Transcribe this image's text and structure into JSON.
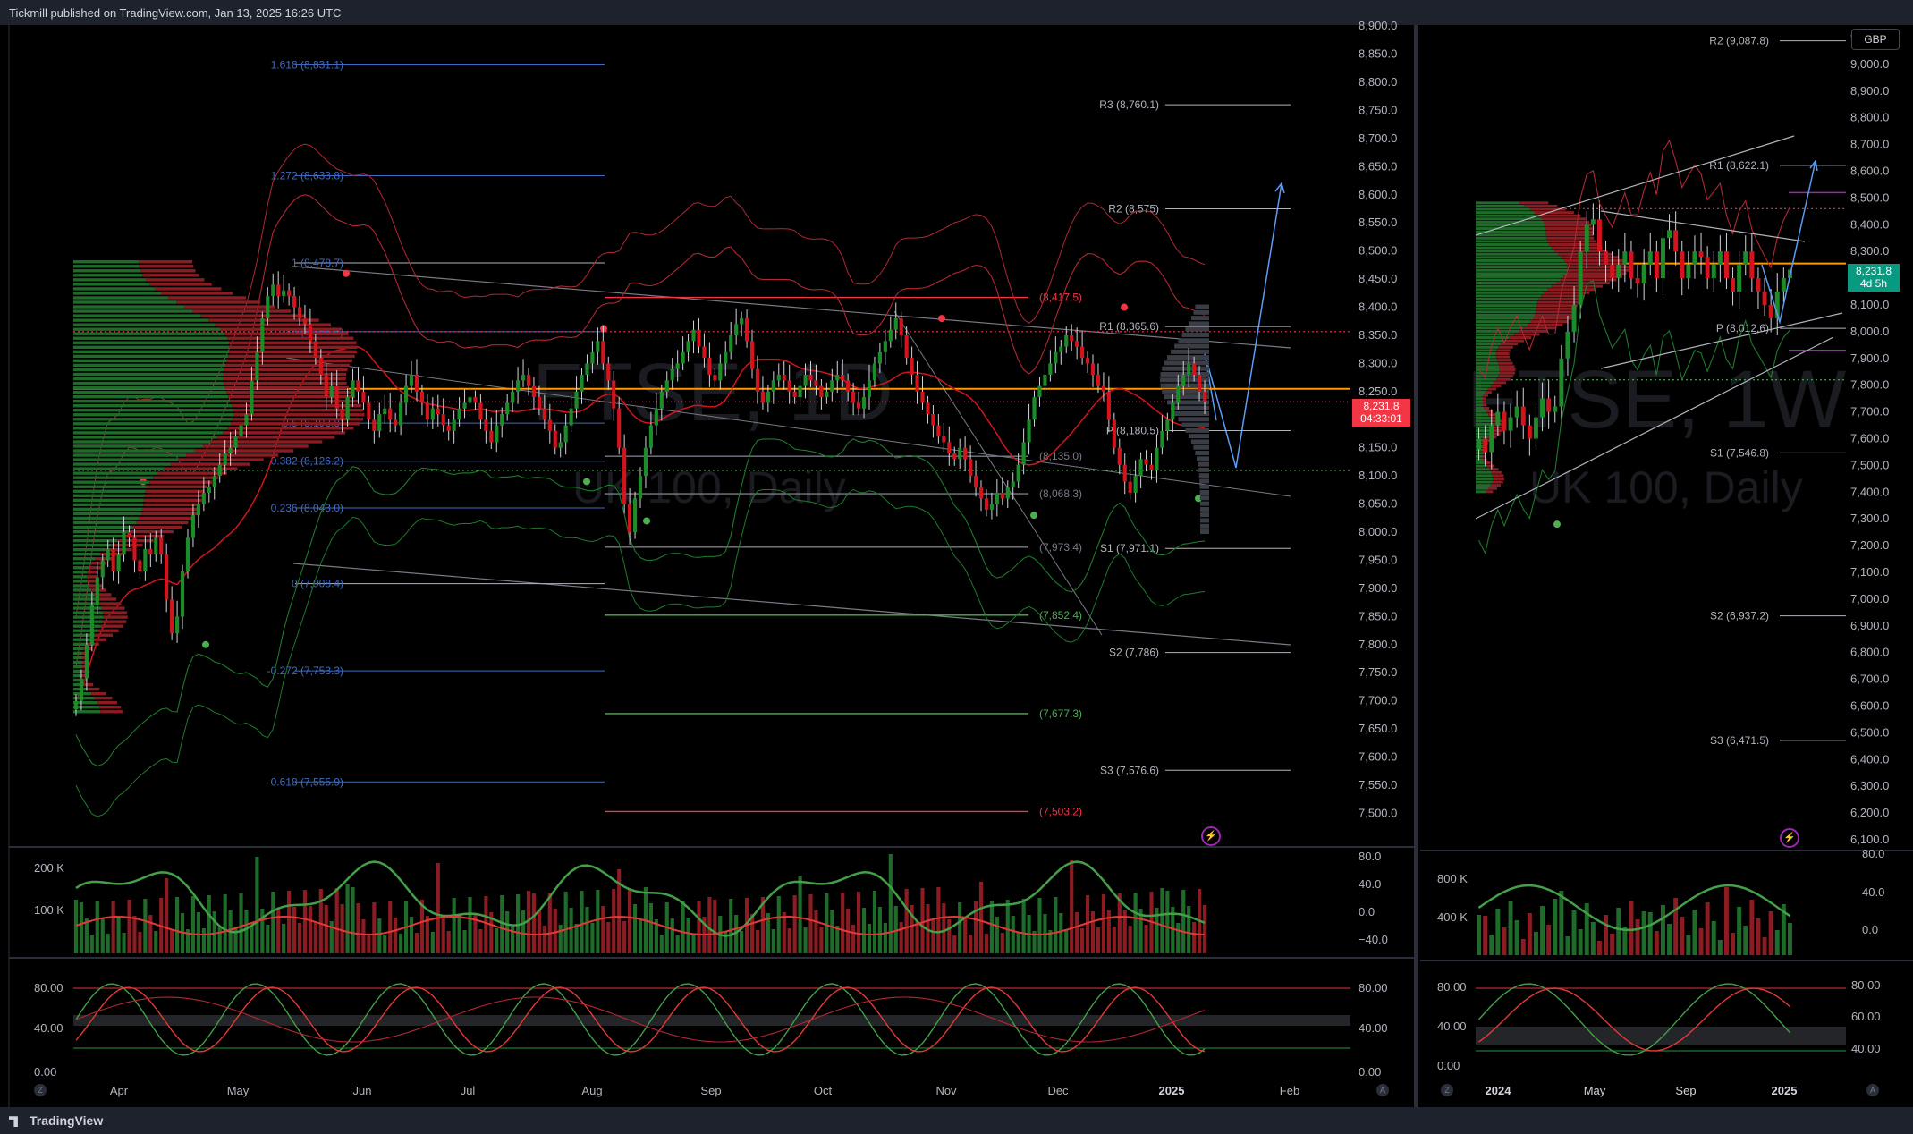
{
  "header": {
    "published": "Tickmill published on TradingView.com, Jan 13, 2025 16:26 UTC"
  },
  "footer": {
    "brand": "TradingView"
  },
  "colors": {
    "up": "#089981",
    "down": "#f23645",
    "candle_up": "#1b8c28",
    "candle_down": "#d3141c",
    "fib": "#3f6bc1",
    "pivot": "#b2b5be",
    "accent_orange": "#ff9800"
  },
  "chart_data": [
    {
      "type": "candlestick",
      "symbol_watermark": "FTSE, 1D",
      "subtitle_watermark": "UK 100, Daily",
      "x_tick_labels": [
        "Apr",
        "May",
        "Jun",
        "Jul",
        "Aug",
        "Sep",
        "Oct",
        "Nov",
        "Dec",
        "2025",
        "Feb"
      ],
      "y_tick_labels": [
        "8,900.0",
        "8,850.0",
        "8,800.0",
        "8,750.0",
        "8,700.0",
        "8,650.0",
        "8,600.0",
        "8,550.0",
        "8,500.0",
        "8,450.0",
        "8,400.0",
        "8,350.0",
        "8,300.0",
        "8,250.0",
        "8,200.0",
        "8,150.0",
        "8,100.0",
        "8,050.0",
        "8,000.0",
        "7,950.0",
        "7,900.0",
        "7,850.0",
        "7,800.0",
        "7,750.0",
        "7,700.0",
        "7,650.0",
        "7,600.0",
        "7,550.0",
        "7,500.0"
      ],
      "ylim": [
        7480,
        8905
      ],
      "last_price": "8,231.8",
      "countdown": "04:33:01",
      "fib_levels": [
        {
          "label": "1.618 (8,831.1)",
          "value": 8831.1
        },
        {
          "label": "1.272 (8,633.8)",
          "value": 8633.8
        },
        {
          "label": "1 (8,478.7)",
          "value": 8478.7
        },
        {
          "label": "0.786 (8,356.6)",
          "value": 8356.6
        },
        {
          "label": "0.5 (8,193.8)",
          "value": 8193.8
        },
        {
          "label": "0.382 (8,126.2)",
          "value": 8126.2
        },
        {
          "label": "0.236 (8,043.0)",
          "value": 8043.0
        },
        {
          "label": "0 (7,908.4)",
          "value": 7908.4
        },
        {
          "label": "-0.272 (7,753.3)",
          "value": 7753.3
        },
        {
          "label": "-0.618 (7,555.9)",
          "value": 7555.9
        }
      ],
      "pivots": [
        {
          "label": "R3 (8,760.1)",
          "value": 8760.1
        },
        {
          "label": "R2 (8,575)",
          "value": 8575
        },
        {
          "label": "R1 (8,365.6)",
          "value": 8365.6
        },
        {
          "label": "P (8,180.5)",
          "value": 8180.5
        },
        {
          "label": "S1 (7,971.1)",
          "value": 7971.1
        },
        {
          "label": "S2 (7,786)",
          "value": 7786
        },
        {
          "label": "S3 (7,576.6)",
          "value": 7576.6
        }
      ],
      "mid_levels": [
        {
          "label": "(8,417.5)",
          "value": 8417.5,
          "color": "#f23645"
        },
        {
          "label": "(8,135.0)",
          "value": 8135.0,
          "color": "#787b86"
        },
        {
          "label": "(8,068.3)",
          "value": 8068.3,
          "color": "#787b86"
        },
        {
          "label": "(7,973.4)",
          "value": 7973.4,
          "color": "#787b86"
        },
        {
          "label": "(7,852.4)",
          "value": 7852.4,
          "color": "#4caf50"
        },
        {
          "label": "(7,677.3)",
          "value": 7677.3,
          "color": "#4caf50"
        },
        {
          "label": "(7,503.2)",
          "value": 7503.2,
          "color": "#f23645"
        }
      ],
      "closes": [
        7700,
        7740,
        7800,
        7870,
        7920,
        7950,
        7970,
        7930,
        7960,
        8000,
        7990,
        7950,
        7930,
        7970,
        7960,
        7990,
        7960,
        7880,
        7820,
        7850,
        7930,
        7990,
        8030,
        8050,
        8070,
        8080,
        8100,
        8120,
        8140,
        8150,
        8170,
        8190,
        8210,
        8270,
        8320,
        8380,
        8420,
        8440,
        8420,
        8430,
        8420,
        8400,
        8380,
        8370,
        8340,
        8310,
        8280,
        8240,
        8260,
        8220,
        8200,
        8240,
        8270,
        8250,
        8230,
        8200,
        8180,
        8210,
        8220,
        8200,
        8190,
        8230,
        8260,
        8280,
        8250,
        8230,
        8200,
        8220,
        8210,
        8190,
        8180,
        8200,
        8220,
        8230,
        8240,
        8230,
        8200,
        8180,
        8160,
        8190,
        8210,
        8230,
        8250,
        8270,
        8280,
        8260,
        8240,
        8220,
        8200,
        8180,
        8150,
        8160,
        8190,
        8220,
        8250,
        8280,
        8300,
        8320,
        8340,
        8300,
        8270,
        8220,
        8150,
        8050,
        8000,
        8060,
        8100,
        8150,
        8190,
        8220,
        8250,
        8270,
        8290,
        8300,
        8320,
        8340,
        8360,
        8330,
        8310,
        8280,
        8270,
        8300,
        8320,
        8350,
        8370,
        8380,
        8340,
        8290,
        8250,
        8230,
        8250,
        8270,
        8280,
        8270,
        8250,
        8240,
        8260,
        8280,
        8270,
        8260,
        8240,
        8250,
        8270,
        8280,
        8270,
        8250,
        8230,
        8220,
        8240,
        8270,
        8300,
        8320,
        8340,
        8360,
        8380,
        8350,
        8310,
        8280,
        8250,
        8230,
        8210,
        8190,
        8170,
        8160,
        8140,
        8130,
        8150,
        8130,
        8100,
        8080,
        8060,
        8040,
        8050,
        8070,
        8060,
        8080,
        8090,
        8120,
        8160,
        8200,
        8240,
        8260,
        8280,
        8300,
        8320,
        8330,
        8350,
        8340,
        8330,
        8310,
        8300,
        8280,
        8260,
        8250,
        8200,
        8150,
        8120,
        8090,
        8070,
        8100,
        8130,
        8120,
        8110,
        8150,
        8180,
        8200,
        8230,
        8260,
        8280,
        8300,
        8280,
        8250,
        8232
      ]
    },
    {
      "type": "candlestick",
      "symbol_watermark": "FTSE, 1W",
      "subtitle_watermark": "UK 100, Daily",
      "x_tick_labels": [
        "2024",
        "May",
        "Sep",
        "2025"
      ],
      "y_tick_labels": [
        "9,100.0",
        "9,000.0",
        "8,900.0",
        "8,800.0",
        "8,700.0",
        "8,600.0",
        "8,500.0",
        "8,400.0",
        "8,300.0",
        "8,200.0",
        "8,100.0",
        "8,000.0",
        "7,900.0",
        "7,800.0",
        "7,700.0",
        "7,600.0",
        "7,500.0",
        "7,400.0",
        "7,300.0",
        "7,200.0",
        "7,100.0",
        "7,000.0",
        "6,900.0",
        "6,800.0",
        "6,700.0",
        "6,600.0",
        "6,500.0",
        "6,400.0",
        "6,300.0",
        "6,200.0",
        "6,100.0"
      ],
      "ylim": [
        6080,
        9150
      ],
      "currency": "GBP",
      "last_price": "8,231.8",
      "countdown": "4d 5h",
      "pivots": [
        {
          "label": "R2 (9,087.8)",
          "value": 9087.8
        },
        {
          "label": "R1 (8,622.1)",
          "value": 8622.1
        },
        {
          "label": "P (8,012.6)",
          "value": 8012.6
        },
        {
          "label": "S1 (7,546.8)",
          "value": 7546.8
        },
        {
          "label": "S2 (6,937.2)",
          "value": 6937.2
        },
        {
          "label": "S3 (6,471.5)",
          "value": 6471.5
        }
      ],
      "closes": [
        7600,
        7550,
        7650,
        7700,
        7630,
        7680,
        7720,
        7650,
        7600,
        7680,
        7750,
        7700,
        7720,
        7900,
        8000,
        8100,
        8300,
        8400,
        8420,
        8300,
        8250,
        8200,
        8250,
        8300,
        8200,
        8180,
        8250,
        8300,
        8200,
        8350,
        8380,
        8300,
        8200,
        8250,
        8300,
        8280,
        8200,
        8250,
        8300,
        8200,
        8150,
        8250,
        8300,
        8200,
        8150,
        8100,
        8050,
        8150,
        8200,
        8232
      ]
    }
  ],
  "oscillator_axis": {
    "volume_left": [
      "200 K",
      "100 K"
    ],
    "volume_right_main": [
      "80.0",
      "40.0",
      "0.0",
      "−40.0"
    ],
    "stoch_main": [
      "80.00",
      "40.00",
      "0.00"
    ],
    "volume_left_weekly": [
      "800 K",
      "400 K"
    ],
    "volume_right_weekly": [
      "80.0",
      "40.0",
      "0.0"
    ],
    "stoch_left_weekly": [
      "80.00",
      "40.00",
      "0.00"
    ],
    "stoch_right_weekly": [
      "80.00",
      "60.00",
      "40.00"
    ]
  },
  "scale_buttons": {
    "left": "Z",
    "right": "A"
  }
}
